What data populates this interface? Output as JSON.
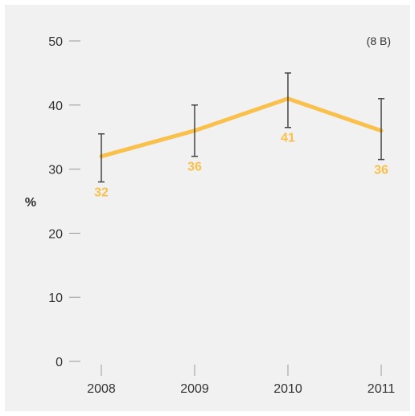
{
  "chart_data": {
    "type": "line",
    "x": [
      "2008",
      "2009",
      "2010",
      "2011"
    ],
    "series": [
      {
        "values": [
          32,
          36,
          41,
          36
        ],
        "error_low": [
          28,
          32,
          36.5,
          31.5
        ],
        "error_high": [
          35.5,
          40,
          45,
          41
        ]
      }
    ],
    "data_labels": [
      "32",
      "36",
      "41",
      "36"
    ],
    "y_ticks": [
      "0",
      "10",
      "20",
      "30",
      "40",
      "50"
    ],
    "ylabel": "%",
    "ylim": [
      0,
      50
    ],
    "annotation": "(8 B)",
    "grid": false,
    "colors": {
      "line": "#f9c04b",
      "label": "#f9c04b",
      "error": "#444444",
      "tick": "#999999",
      "background": "#f1f1f2"
    }
  }
}
